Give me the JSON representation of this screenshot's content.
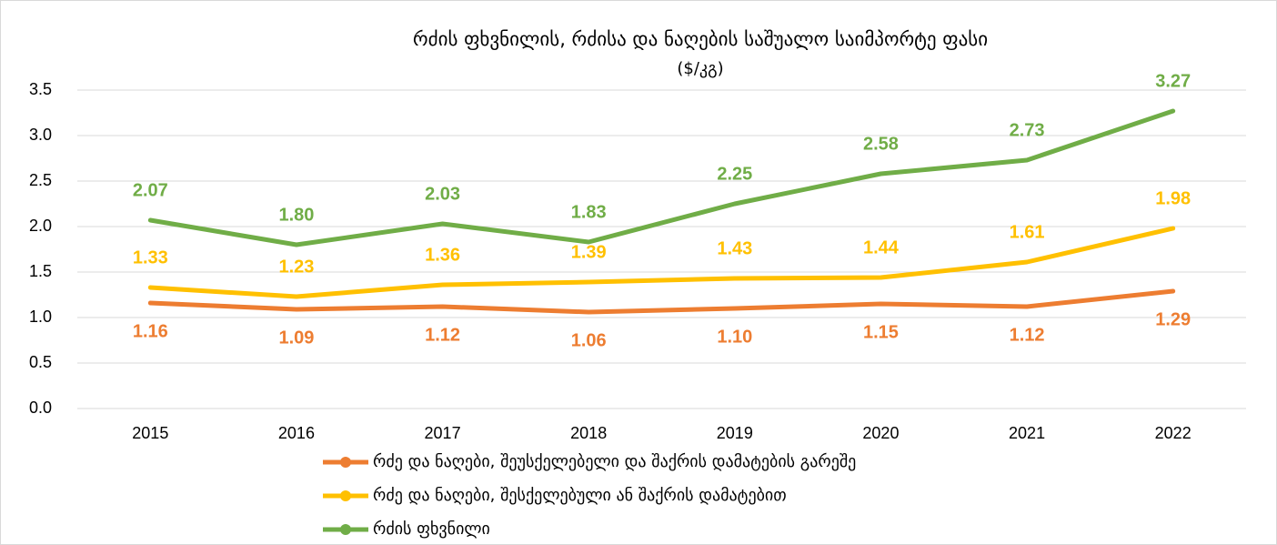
{
  "chart_data": {
    "type": "line",
    "title": "რძის ფხვნილის, რძისა და ნაღების საშუალო საიმპორტე ფასი",
    "subtitle": "($/კგ)",
    "categories": [
      "2015",
      "2016",
      "2017",
      "2018",
      "2019",
      "2020",
      "2021",
      "2022"
    ],
    "series": [
      {
        "name": "რძე და ნაღები, შეუსქელებელი და შაქრის დამატების გარეშე",
        "color": "#ED7D31",
        "values": [
          1.16,
          1.09,
          1.12,
          1.06,
          1.1,
          1.15,
          1.12,
          1.29
        ],
        "value_labels": [
          "1.16",
          "1.09",
          "1.12",
          "1.06",
          "1.10",
          "1.15",
          "1.12",
          "1.29"
        ]
      },
      {
        "name": "რძე და ნაღები, შესქელებული ან შაქრის დამატებით",
        "color": "#FFC000",
        "values": [
          1.33,
          1.23,
          1.36,
          1.39,
          1.43,
          1.44,
          1.61,
          1.98
        ],
        "value_labels": [
          "1.33",
          "1.23",
          "1.36",
          "1.39",
          "1.43",
          "1.44",
          "1.61",
          "1.98"
        ]
      },
      {
        "name": "რძის ფხვნილი",
        "color": "#70AD47",
        "values": [
          2.07,
          1.8,
          2.03,
          1.83,
          2.25,
          2.58,
          2.73,
          3.27
        ],
        "value_labels": [
          "2.07",
          "1.80",
          "2.03",
          "1.83",
          "2.25",
          "2.58",
          "2.73",
          "3.27"
        ]
      }
    ],
    "ylim": [
      0,
      3.5
    ],
    "yticks": [
      {
        "value": 0,
        "label": "0.0"
      },
      0.5,
      {
        "value": 1,
        "label": "1.0"
      },
      1.5,
      {
        "value": 2,
        "label": "2.0"
      },
      2.5,
      {
        "value": 3,
        "label": "3.0"
      },
      3.5
    ],
    "grid": true,
    "legend": "bottom"
  }
}
